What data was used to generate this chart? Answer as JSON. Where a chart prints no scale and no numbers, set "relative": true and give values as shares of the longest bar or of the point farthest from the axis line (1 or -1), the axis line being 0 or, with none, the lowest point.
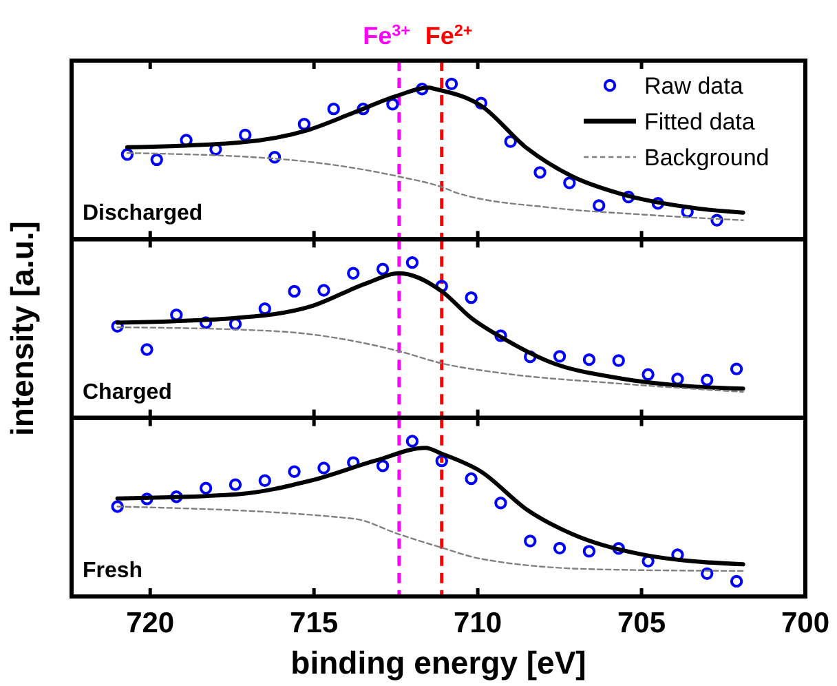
{
  "chart_data": [
    {
      "type": "line",
      "title": "Discharged",
      "relative": true,
      "xlim": [
        722.4,
        700
      ],
      "xticks": [
        720,
        715,
        710,
        705,
        700
      ],
      "tick_labels": false,
      "legend": "top right",
      "ref_lines": [
        {
          "axis": "x",
          "value": 712.4,
          "label": "Fe$^{3+}$",
          "color": "#ff00ff",
          "line_style": "dashed"
        },
        {
          "axis": "x",
          "value": 711.1,
          "label": "Fe$^{2+}$",
          "color": "#ff0000",
          "line_style": "dashed"
        }
      ],
      "series": [
        {
          "name": "Raw data",
          "type": "scatter",
          "marker": "circle",
          "color": "#0000ff",
          "x": [
            720.7,
            719.8,
            718.9,
            718.0,
            717.1,
            716.2,
            715.3,
            714.4,
            713.5,
            712.6,
            711.7,
            710.8,
            709.9,
            709.0,
            708.1,
            707.2,
            706.3,
            705.4,
            704.5,
            703.6,
            702.7
          ],
          "values": [
            0.546,
            0.512,
            0.638,
            0.579,
            0.671,
            0.528,
            0.741,
            0.839,
            0.839,
            0.869,
            0.967,
            1,
            0.876,
            0.629,
            0.43,
            0.363,
            0.217,
            0.272,
            0.231,
            0.177,
            0.122
          ]
        },
        {
          "name": "Fitted data",
          "type": "line",
          "marker": "none",
          "line_style": "solid",
          "color": "#000000",
          "x": [
            720.7,
            717.3,
            715.2,
            713.8,
            712.5,
            711.5,
            711.3,
            709.9,
            708.5,
            707.1,
            705.7,
            703.5,
            701.9
          ],
          "values": [
            0.592,
            0.622,
            0.702,
            0.814,
            0.921,
            0.976,
            0.967,
            0.86,
            0.586,
            0.403,
            0.296,
            0.204,
            0.171
          ]
        },
        {
          "name": "Background",
          "type": "line",
          "marker": "none",
          "line_style": "dashed",
          "color": "#808080",
          "x": [
            720.7,
            716.2,
            712.4,
            711.1,
            710.6,
            707.8,
            704.9,
            701.9
          ],
          "values": [
            0.555,
            0.519,
            0.403,
            0.336,
            0.296,
            0.204,
            0.158,
            0.122
          ]
        }
      ]
    },
    {
      "type": "line",
      "title": "Charged",
      "ylabel": "intensity [a.u.]",
      "relative": true,
      "xlim": [
        722.4,
        700
      ],
      "xticks": [
        720,
        715,
        710,
        705,
        700
      ],
      "tick_labels": false,
      "legend": false,
      "ref_lines": [
        {
          "axis": "x",
          "value": 712.4,
          "color": "#ff00ff",
          "line_style": "dashed"
        },
        {
          "axis": "x",
          "value": 711.1,
          "color": "#ff0000",
          "line_style": "dashed"
        }
      ],
      "series": [
        {
          "type": "scatter",
          "marker": "circle",
          "color": "#0000ff",
          "x": [
            721.0,
            720.1,
            719.2,
            718.3,
            717.4,
            716.5,
            715.6,
            714.7,
            713.8,
            712.9,
            712.0,
            711.1,
            710.2,
            709.3,
            708.4,
            707.5,
            706.6,
            705.7,
            704.8,
            703.9,
            703.0,
            702.1
          ],
          "values": [
            0.589,
            0.44,
            0.663,
            0.613,
            0.604,
            0.703,
            0.815,
            0.821,
            0.931,
            0.958,
            1,
            0.848,
            0.774,
            0.529,
            0.393,
            0.396,
            0.375,
            0.369,
            0.279,
            0.25,
            0.244,
            0.315
          ]
        },
        {
          "type": "line",
          "marker": "none",
          "line_style": "solid",
          "color": "#000000",
          "x": [
            721.0,
            717.4,
            715.1,
            713.4,
            712.4,
            711.1,
            710.2,
            709.2,
            707.8,
            705.7,
            703.5,
            701.9
          ],
          "values": [
            0.613,
            0.643,
            0.717,
            0.866,
            0.931,
            0.815,
            0.643,
            0.509,
            0.36,
            0.256,
            0.203,
            0.188
          ]
        },
        {
          "type": "line",
          "marker": "none",
          "line_style": "dashed",
          "color": "#808080",
          "x": [
            721.0,
            717.4,
            715.1,
            712.4,
            711.1,
            709.2,
            705.7,
            701.9
          ],
          "values": [
            0.583,
            0.569,
            0.538,
            0.429,
            0.351,
            0.286,
            0.221,
            0.167
          ]
        }
      ]
    },
    {
      "type": "line",
      "title": "Fresh",
      "xlabel": "binding energy [eV]",
      "relative": true,
      "xlim": [
        722.4,
        700
      ],
      "xticks": [
        720,
        715,
        710,
        705,
        700
      ],
      "tick_labels": "x",
      "legend": false,
      "ref_lines": [
        {
          "axis": "x",
          "value": 712.4,
          "color": "#ff00ff",
          "line_style": "dashed"
        },
        {
          "axis": "x",
          "value": 711.1,
          "color": "#ff0000",
          "line_style": "dashed"
        }
      ],
      "series": [
        {
          "type": "scatter",
          "marker": "circle",
          "color": "#0000ff",
          "x": [
            721.0,
            720.1,
            719.2,
            718.3,
            717.4,
            716.5,
            715.6,
            714.7,
            713.8,
            712.9,
            712.0,
            711.1,
            710.2,
            709.3,
            708.4,
            707.5,
            706.6,
            705.7,
            704.8,
            703.9,
            703.0,
            702.1
          ],
          "values": [
            0.579,
            0.628,
            0.642,
            0.697,
            0.72,
            0.746,
            0.804,
            0.827,
            0.862,
            0.841,
            1,
            0.873,
            0.758,
            0.602,
            0.357,
            0.311,
            0.291,
            0.309,
            0.227,
            0.268,
            0.147,
            0.098
          ]
        },
        {
          "type": "line",
          "marker": "none",
          "line_style": "solid",
          "color": "#000000",
          "x": [
            721.0,
            717.3,
            715.1,
            713.1,
            711.6,
            711.1,
            709.9,
            708.5,
            707.1,
            705.0,
            701.9
          ],
          "values": [
            0.631,
            0.659,
            0.746,
            0.876,
            0.957,
            0.919,
            0.804,
            0.559,
            0.4,
            0.271,
            0.207
          ]
        },
        {
          "type": "line",
          "marker": "none",
          "line_style": "dashed",
          "color": "#808080",
          "x": [
            721.0,
            713.8,
            712.4,
            711.1,
            709.9,
            706.4,
            701.9
          ],
          "values": [
            0.579,
            0.501,
            0.4,
            0.314,
            0.242,
            0.175,
            0.164
          ]
        }
      ]
    }
  ]
}
